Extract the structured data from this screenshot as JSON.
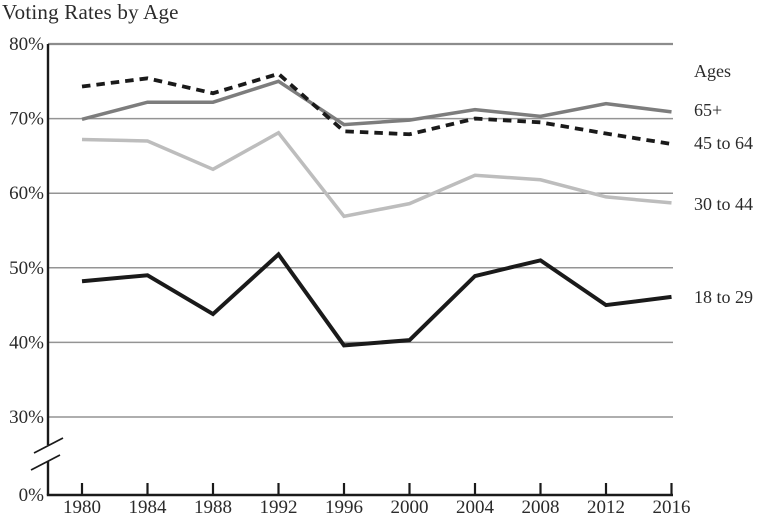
{
  "title": "Voting Rates by Age",
  "legend": {
    "heading": "Ages"
  },
  "colors": {
    "text": "#2b2b2b",
    "gridline": "#949494",
    "top_border": "#8c8c8c",
    "axis": "#1a1a1a",
    "series_65plus": "#7d7d7d",
    "series_45to64": "#1a1a1a",
    "series_30to44": "#bdbdbd",
    "series_18to29": "#1a1a1a"
  },
  "chart_data": {
    "type": "line",
    "title": "Voting Rates by Age",
    "xlabel": "",
    "ylabel": "",
    "x": [
      1980,
      1984,
      1988,
      1992,
      1996,
      2000,
      2004,
      2008,
      2012,
      2016
    ],
    "x_tick_labels": [
      "1980",
      "1984",
      "1988",
      "1992",
      "1996",
      "2000",
      "2004",
      "2008",
      "2012",
      "2016"
    ],
    "y_ticks": [
      80,
      70,
      60,
      50,
      40,
      30,
      0
    ],
    "y_tick_labels": [
      "80%",
      "70%",
      "60%",
      "50%",
      "40%",
      "30%",
      "0%"
    ],
    "ylim": [
      0,
      80
    ],
    "axis_break": true,
    "grid": "horizontal",
    "legend_position": "right",
    "legend_heading": "Ages",
    "series": [
      {
        "name": "30 to 44",
        "style": "solid",
        "color": "#bdbdbd",
        "width": 3.5,
        "values": [
          67.2,
          67.0,
          63.2,
          68.1,
          56.9,
          58.6,
          62.4,
          61.8,
          59.5,
          58.7
        ]
      },
      {
        "name": "65+",
        "style": "solid",
        "color": "#7d7d7d",
        "width": 3.5,
        "values": [
          69.9,
          72.2,
          72.2,
          75.0,
          69.2,
          69.8,
          71.2,
          70.3,
          72.0,
          70.9
        ]
      },
      {
        "name": "45 to 64",
        "style": "dashed",
        "color": "#1a1a1a",
        "width": 3.8,
        "values": [
          74.3,
          75.4,
          73.4,
          76.0,
          68.3,
          67.9,
          70.0,
          69.5,
          68.0,
          66.6
        ]
      },
      {
        "name": "18 to 29",
        "style": "solid",
        "color": "#1a1a1a",
        "width": 4,
        "values": [
          48.2,
          49.0,
          43.8,
          51.8,
          39.6,
          40.3,
          48.9,
          51.0,
          45.0,
          46.1
        ]
      }
    ]
  }
}
